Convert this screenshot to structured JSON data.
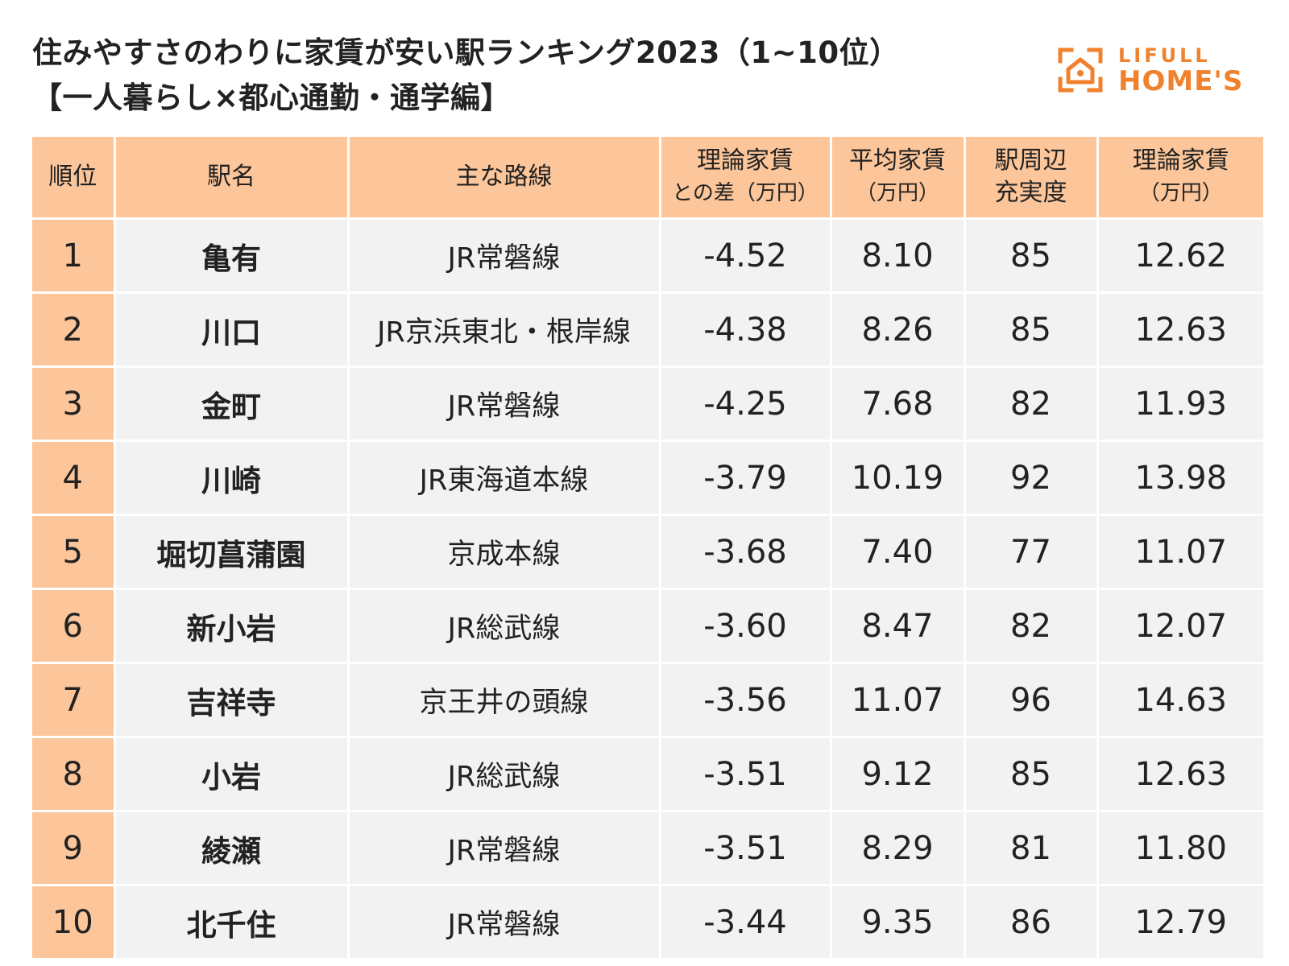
{
  "title": {
    "line1": "住みやすさのわりに家賃が安い駅ランキング2023（1~10位）",
    "line2": "【一人暮らし×都心通勤・通学編】"
  },
  "logo": {
    "top": "LIFULL",
    "bottom": "HOME'S",
    "color": "#f0822d"
  },
  "colors": {
    "header_bg": "#fcc69a",
    "row_bg": "#f2f2f2"
  },
  "chart_data": {
    "type": "table",
    "columns": [
      {
        "line1": "順位",
        "line2": ""
      },
      {
        "line1": "駅名",
        "line2": ""
      },
      {
        "line1": "主な路線",
        "line2": ""
      },
      {
        "line1": "理論家賃",
        "line2": "との差（万円）"
      },
      {
        "line1": "平均家賃",
        "line2": "（万円）"
      },
      {
        "line1": "駅周辺",
        "line2": "充実度"
      },
      {
        "line1": "理論家賃",
        "line2": "（万円）"
      }
    ],
    "rows": [
      {
        "rank": "1",
        "station": "亀有",
        "line": "JR常磐線",
        "diff": "-4.52",
        "avg_rent": "8.10",
        "score": "85",
        "theory_rent": "12.62"
      },
      {
        "rank": "2",
        "station": "川口",
        "line": "JR京浜東北・根岸線",
        "diff": "-4.38",
        "avg_rent": "8.26",
        "score": "85",
        "theory_rent": "12.63"
      },
      {
        "rank": "3",
        "station": "金町",
        "line": "JR常磐線",
        "diff": "-4.25",
        "avg_rent": "7.68",
        "score": "82",
        "theory_rent": "11.93"
      },
      {
        "rank": "4",
        "station": "川崎",
        "line": "JR東海道本線",
        "diff": "-3.79",
        "avg_rent": "10.19",
        "score": "92",
        "theory_rent": "13.98"
      },
      {
        "rank": "5",
        "station": "堀切菖蒲園",
        "line": "京成本線",
        "diff": "-3.68",
        "avg_rent": "7.40",
        "score": "77",
        "theory_rent": "11.07"
      },
      {
        "rank": "6",
        "station": "新小岩",
        "line": "JR総武線",
        "diff": "-3.60",
        "avg_rent": "8.47",
        "score": "82",
        "theory_rent": "12.07"
      },
      {
        "rank": "7",
        "station": "吉祥寺",
        "line": "京王井の頭線",
        "diff": "-3.56",
        "avg_rent": "11.07",
        "score": "96",
        "theory_rent": "14.63"
      },
      {
        "rank": "8",
        "station": "小岩",
        "line": "JR総武線",
        "diff": "-3.51",
        "avg_rent": "9.12",
        "score": "85",
        "theory_rent": "12.63"
      },
      {
        "rank": "9",
        "station": "綾瀬",
        "line": "JR常磐線",
        "diff": "-3.51",
        "avg_rent": "8.29",
        "score": "81",
        "theory_rent": "11.80"
      },
      {
        "rank": "10",
        "station": "北千住",
        "line": "JR常磐線",
        "diff": "-3.44",
        "avg_rent": "9.35",
        "score": "86",
        "theory_rent": "12.79"
      }
    ]
  }
}
